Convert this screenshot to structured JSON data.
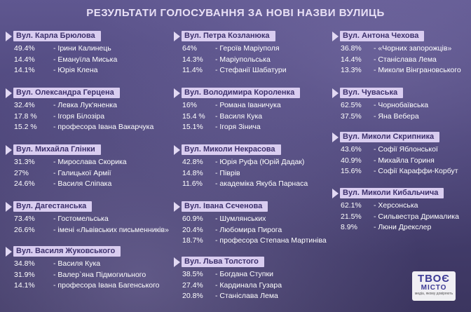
{
  "title": "РЕЗУЛЬТАТИ ГОЛОСУВАННЯ ЗА НОВІ НАЗВИ ВУЛИЦЬ",
  "columns": [
    {
      "streets": [
        {
          "name": "Вул. Карла Брюлова",
          "results": [
            {
              "pct": "49.4%",
              "name": "-  Ірини Калинець"
            },
            {
              "pct": "14.4%",
              "name": "-  Емануїла Миська"
            },
            {
              "pct": "14.1%",
              "name": "-  Юрія Клена"
            }
          ]
        },
        {
          "name": "Вул. Олександра Герцена",
          "results": [
            {
              "pct": "32.4%",
              "name": "-  Левка Лук'яненка"
            },
            {
              "pct": "17.8 %",
              "name": "-  Ігоря Білозіра"
            },
            {
              "pct": "15.2 %",
              "name": "-  професора Івана Вакарчука"
            }
          ]
        },
        {
          "name": "Вул. Михайла Глінки",
          "results": [
            {
              "pct": "31.3%",
              "name": "-  Мирослава Скорика"
            },
            {
              "pct": "27%",
              "name": "-  Галицької Армії"
            },
            {
              "pct": "24.6%",
              "name": "-  Василя Сліпака"
            }
          ]
        },
        {
          "name": "Вул. Дагестанська",
          "results": [
            {
              "pct": "73.4%",
              "name": "-  Гостомельська"
            },
            {
              "pct": "26.6%",
              "name": "-  імені «Львівських письменників»"
            }
          ]
        },
        {
          "name": "Вул. Василя Жуковського",
          "results": [
            {
              "pct": "34.8%",
              "name": "-  Василя Кука"
            },
            {
              "pct": "31.9%",
              "name": "-  Валер`яна Підмогильного"
            },
            {
              "pct": "14.1%",
              "name": "-  професора Івана Багенського"
            }
          ]
        }
      ]
    },
    {
      "streets": [
        {
          "name": "Вул. Петра Козланюка",
          "results": [
            {
              "pct": "64%",
              "name": "-  Героїв Маріуполя"
            },
            {
              "pct": "14.3%",
              "name": "-  Маріупольська"
            },
            {
              "pct": "11.4%",
              "name": "-  Стефанії Шабатури"
            }
          ]
        },
        {
          "name": "Вул. Володимира Короленка",
          "results": [
            {
              "pct": "16%",
              "name": "-  Романа Іваничука"
            },
            {
              "pct": "15.4 %",
              "name": "-  Василя Кука"
            },
            {
              "pct": "15.1%",
              "name": "-  Ігоря Зінича"
            }
          ]
        },
        {
          "name": "Вул. Миколи Некрасова",
          "results": [
            {
              "pct": "42.8%",
              "name": "-  Юрія Руфа (Юрій Дадак)"
            },
            {
              "pct": "14.8%",
              "name": "-  Піврів"
            },
            {
              "pct": "11.6%",
              "name": "-  академіка Якуба Парнаса"
            }
          ]
        },
        {
          "name": "Вул. Івана Сєченова",
          "results": [
            {
              "pct": "60.9%",
              "name": "-  Шумлянських"
            },
            {
              "pct": "20.4%",
              "name": "-  Любомира Пирога"
            },
            {
              "pct": "18.7%",
              "name": "-  професора Степана Мартиніва"
            }
          ]
        },
        {
          "name": "Вул. Льва Толстого",
          "results": [
            {
              "pct": "38.5%",
              "name": "-  Богдана Ступки"
            },
            {
              "pct": "27.4%",
              "name": "-  Кардинала Гузара"
            },
            {
              "pct": "20.8%",
              "name": "-  Станіслава Лема"
            }
          ]
        }
      ]
    },
    {
      "streets": [
        {
          "name": "Вул. Антона Чехова",
          "results": [
            {
              "pct": "36.8%",
              "name": "-  «Чорних запорожців»"
            },
            {
              "pct": "14.4%",
              "name": "-  Станіслава Лема"
            },
            {
              "pct": "13.3%",
              "name": "-  Миколи Вінграновського"
            }
          ]
        },
        {
          "name": "Вул. Чуваська",
          "results": [
            {
              "pct": "62.5%",
              "name": "-  Чорнобаївська"
            },
            {
              "pct": "37.5%",
              "name": "-  Яна Вебера"
            }
          ]
        },
        {
          "name": "Вул. Миколи Скрипника",
          "results": [
            {
              "pct": "43.6%",
              "name": "-  Софії Яблонської"
            },
            {
              "pct": "40.9%",
              "name": "-  Михайла Гориня"
            },
            {
              "pct": "15.6%",
              "name": "-  Софії Караффи-Корбут"
            }
          ]
        },
        {
          "name": "Вул. Миколи Кибальчича",
          "results": [
            {
              "pct": "62.1%",
              "name": "-  Херсонська"
            },
            {
              "pct": "21.5%",
              "name": "-  Сильвестра Дрималика"
            },
            {
              "pct": "8.9%",
              "name": "-  Люни Дрекслер"
            }
          ]
        }
      ]
    }
  ],
  "logo": {
    "line1": "ТВОЄ",
    "line2": "МІСТО",
    "tagline": "медіа, якому довіряють"
  }
}
